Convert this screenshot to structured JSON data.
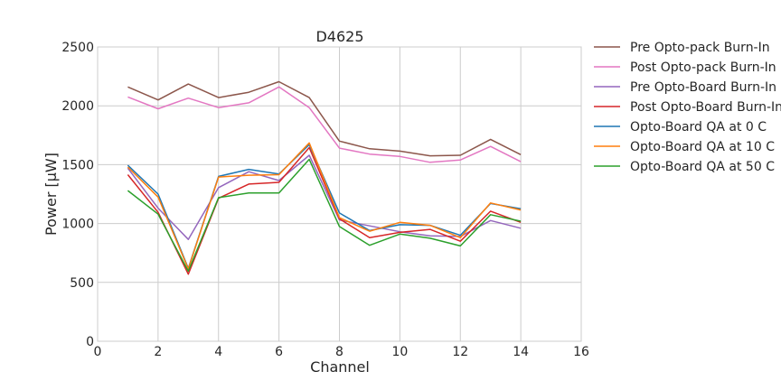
{
  "chart_data": {
    "type": "line",
    "title": "D4625",
    "xlabel": "Channel",
    "ylabel": "Power [μW]",
    "xlim": [
      0,
      16
    ],
    "ylim": [
      0,
      2500
    ],
    "xticks": [
      0,
      2,
      4,
      6,
      8,
      10,
      12,
      14,
      16
    ],
    "yticks": [
      0,
      500,
      1000,
      1500,
      2000,
      2500
    ],
    "grid": true,
    "legend_position": "outside-right",
    "x": [
      1,
      2,
      3,
      4,
      5,
      6,
      7,
      8,
      9,
      10,
      11,
      12,
      13,
      14
    ],
    "series": [
      {
        "name": "Pre Opto-pack Burn-In",
        "color": "#8c564b",
        "values": [
          2160,
          2050,
          2185,
          2070,
          2115,
          2205,
          2070,
          1700,
          1635,
          1615,
          1575,
          1580,
          1715,
          1585
        ]
      },
      {
        "name": "Post Opto-pack Burn-In",
        "color": "#e377c2",
        "values": [
          2075,
          1975,
          2065,
          1985,
          2025,
          2160,
          1985,
          1640,
          1590,
          1570,
          1520,
          1540,
          1655,
          1525
        ]
      },
      {
        "name": "Pre Opto-Board Burn-In",
        "color": "#9467bd",
        "values": [
          1470,
          1130,
          865,
          1305,
          1440,
          1365,
          1580,
          1030,
          980,
          930,
          895,
          890,
          1025,
          960
        ]
      },
      {
        "name": "Post Opto-Board Burn-In",
        "color": "#d62728",
        "values": [
          1415,
          1095,
          570,
          1215,
          1335,
          1350,
          1645,
          1040,
          880,
          925,
          950,
          850,
          1105,
          1010
        ]
      },
      {
        "name": "Opto-Board QA at 0 C",
        "color": "#1f77b4",
        "values": [
          1495,
          1250,
          620,
          1400,
          1460,
          1420,
          1670,
          1090,
          940,
          990,
          985,
          900,
          1170,
          1125
        ]
      },
      {
        "name": "Opto-Board QA at 10 C",
        "color": "#ff7f0e",
        "values": [
          1480,
          1225,
          615,
          1395,
          1410,
          1415,
          1685,
          1050,
          935,
          1010,
          985,
          880,
          1175,
          1115
        ]
      },
      {
        "name": "Opto-Board QA at 50 C",
        "color": "#2ca02c",
        "values": [
          1280,
          1080,
          595,
          1220,
          1260,
          1260,
          1545,
          975,
          815,
          910,
          875,
          810,
          1075,
          1020
        ]
      }
    ]
  }
}
